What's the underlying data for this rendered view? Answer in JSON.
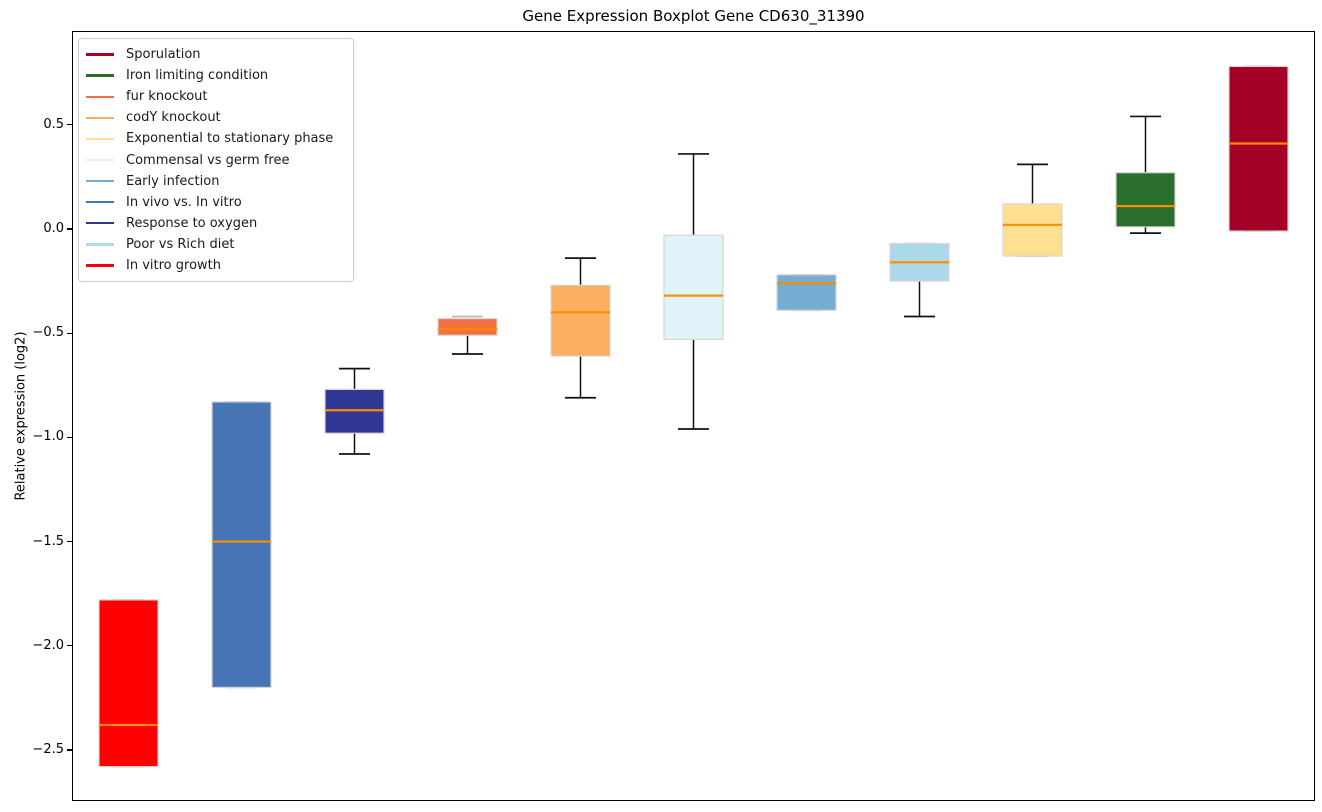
{
  "title": "Gene Expression Boxplot Gene CD630_31390",
  "ylabel": "Relative expression (log2)",
  "chart_data": {
    "type": "boxplot",
    "title": "Gene Expression Boxplot Gene CD630_31390",
    "xlabel": "",
    "ylabel": "Relative expression (log2)",
    "ylim": [
      -2.745,
      0.95
    ],
    "grid": false,
    "legend_position": "upper-left",
    "median_color": "#ff8c00",
    "box_edge_color": "#d6d6d6",
    "whisker_color": "#111111",
    "zero_length_cap_color": "#b9b9b9",
    "yticks": [
      {
        "value": 0.5,
        "label": "0.5"
      },
      {
        "value": 0.0,
        "label": "0.0"
      },
      {
        "value": -0.5,
        "label": "−0.5"
      },
      {
        "value": -1.0,
        "label": "−1.0"
      },
      {
        "value": -1.5,
        "label": "−1.5"
      },
      {
        "value": -2.0,
        "label": "−2.0"
      },
      {
        "value": -2.5,
        "label": "−2.5"
      }
    ],
    "legend": [
      {
        "label": "Sporulation",
        "color": "#a50026"
      },
      {
        "label": "Iron limiting condition",
        "color": "#2a6e2e"
      },
      {
        "label": "fur knockout",
        "color": "#f46d43"
      },
      {
        "label": "codY knockout",
        "color": "#fdae61"
      },
      {
        "label": "Exponential to stationary phase",
        "color": "#fee090"
      },
      {
        "label": "Commensal vs germ free",
        "color": "#e0f3f8"
      },
      {
        "label": "Early infection",
        "color": "#74add1"
      },
      {
        "label": "In vivo vs. In vitro",
        "color": "#4575b4"
      },
      {
        "label": "Response to oxygen",
        "color": "#313695"
      },
      {
        "label": "Poor vs Rich diet",
        "color": "#abd9e9"
      },
      {
        "label": "In vitro growth",
        "color": "#ff0000"
      }
    ],
    "series": [
      {
        "name": "In vitro growth",
        "color": "#ff0000",
        "whisker_low": -2.58,
        "q1": -2.58,
        "median": -2.38,
        "q3": -1.78,
        "whisker_high": -1.78
      },
      {
        "name": "In vivo vs. In vitro",
        "color": "#4575b4",
        "whisker_low": -2.2,
        "q1": -2.2,
        "median": -1.5,
        "q3": -0.83,
        "whisker_high": -0.83
      },
      {
        "name": "Response to oxygen",
        "color": "#313695",
        "whisker_low": -1.08,
        "q1": -0.98,
        "median": -0.87,
        "q3": -0.77,
        "whisker_high": -0.67
      },
      {
        "name": "fur knockout",
        "color": "#f46d43",
        "whisker_low": -0.6,
        "q1": -0.51,
        "median": -0.48,
        "q3": -0.43,
        "whisker_high": -0.42
      },
      {
        "name": "codY knockout",
        "color": "#fdae61",
        "whisker_low": -0.81,
        "q1": -0.61,
        "median": -0.4,
        "q3": -0.27,
        "whisker_high": -0.14
      },
      {
        "name": "Commensal vs germ free",
        "color": "#e0f3f8",
        "whisker_low": -0.96,
        "q1": -0.53,
        "median": -0.32,
        "q3": -0.03,
        "whisker_high": 0.36
      },
      {
        "name": "Early infection",
        "color": "#74add1",
        "whisker_low": -0.39,
        "q1": -0.39,
        "median": -0.26,
        "q3": -0.22,
        "whisker_high": -0.22
      },
      {
        "name": "Poor vs Rich diet",
        "color": "#abd9e9",
        "whisker_low": -0.42,
        "q1": -0.25,
        "median": -0.16,
        "q3": -0.07,
        "whisker_high": -0.07
      },
      {
        "name": "Exponential to stationary phase",
        "color": "#fee090",
        "whisker_low": -0.13,
        "q1": -0.13,
        "median": 0.02,
        "q3": 0.12,
        "whisker_high": 0.31
      },
      {
        "name": "Iron limiting condition",
        "color": "#2a6e2e",
        "whisker_low": -0.02,
        "q1": 0.01,
        "median": 0.11,
        "q3": 0.27,
        "whisker_high": 0.54
      },
      {
        "name": "Sporulation",
        "color": "#a50026",
        "whisker_low": -0.01,
        "q1": -0.01,
        "median": 0.41,
        "q3": 0.78,
        "whisker_high": 0.78
      }
    ]
  }
}
